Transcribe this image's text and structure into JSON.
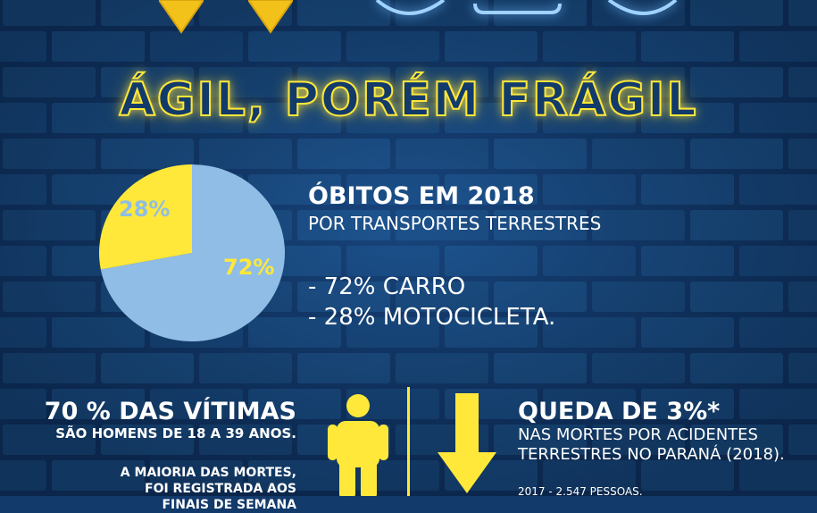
{
  "title": "ÁGIL, PORÉM FRÁGIL",
  "colors": {
    "background": "#123a6b",
    "accent": "#ffe83a",
    "pie_blue": "#8fbde6",
    "white": "#ffffff"
  },
  "chart_data": {
    "type": "pie",
    "slices": [
      {
        "label": "72%",
        "value": 72,
        "color": "#8fbde6"
      },
      {
        "label": "28%",
        "value": 28,
        "color": "#ffe83a"
      }
    ]
  },
  "stats": {
    "title": "ÓBITOS EM 2018",
    "subtitle": "POR TRANSPORTES TERRESTRES",
    "items": [
      "- 72% CARRO",
      "- 28% MOTOCICLETA."
    ]
  },
  "victims": {
    "title": "70 % DAS VÍTIMAS",
    "subtitle": "SÃO HOMENS DE 18 A 39 ANOS.",
    "note_lines": [
      "A MAIORIA DAS MORTES,",
      "FOI REGISTRADA AOS",
      "FINAIS DE SEMANA"
    ]
  },
  "decline": {
    "title": "QUEDA DE 3%*",
    "subtitle_lines": [
      "NAS MORTES POR ACIDENTES",
      "TERRESTRES NO PARANÁ (2018)."
    ],
    "note": "2017 - 2.547 PESSOAS."
  },
  "icons": [
    "location-pin-icon",
    "motorcycle-icon",
    "person-icon",
    "down-arrow-icon"
  ]
}
